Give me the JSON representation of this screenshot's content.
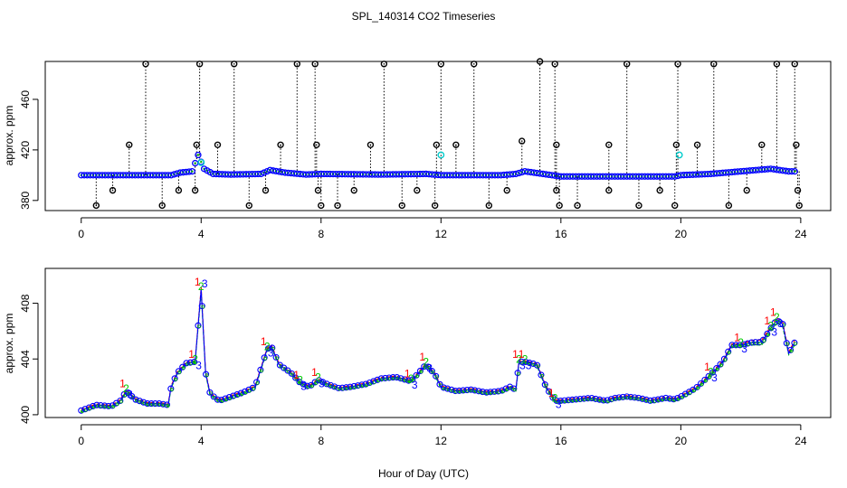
{
  "figure": {
    "title": "SPL_140314  CO2 Timeseries",
    "xlabel": "Hour of Day (UTC)"
  },
  "chart_data": [
    {
      "type": "scatter",
      "panel": "top",
      "ylabel": "approx. ppm",
      "xlim": [
        -1.2,
        25
      ],
      "ylim": [
        372,
        490
      ],
      "xticks": [
        0,
        4,
        8,
        12,
        16,
        20,
        24
      ],
      "yticks": [
        380,
        420,
        460
      ],
      "grid": false,
      "colors": {
        "raw": "#000000",
        "flag": "#00cccc",
        "smooth": "#0000ff",
        "inner": "#00aa00"
      },
      "baseline": [
        [
          0,
          400
        ],
        [
          1,
          400
        ],
        [
          2,
          400
        ],
        [
          3,
          400
        ],
        [
          3.3,
          402
        ],
        [
          3.7,
          403
        ],
        [
          3.9,
          416
        ],
        [
          4.1,
          405
        ],
        [
          4.4,
          401
        ],
        [
          5,
          400.5
        ],
        [
          6,
          401
        ],
        [
          6.3,
          404
        ],
        [
          6.8,
          402
        ],
        [
          7.5,
          400.5
        ],
        [
          8,
          401
        ],
        [
          10,
          400.5
        ],
        [
          11.5,
          401
        ],
        [
          12,
          400
        ],
        [
          14,
          400
        ],
        [
          14.5,
          401
        ],
        [
          14.8,
          403
        ],
        [
          15.7,
          400
        ],
        [
          16,
          399
        ],
        [
          19.8,
          399
        ],
        [
          20,
          400
        ],
        [
          21,
          401
        ],
        [
          22,
          403
        ],
        [
          23,
          405
        ],
        [
          23.6,
          403
        ]
      ],
      "high_spikes": [
        [
          2.15,
          488
        ],
        [
          3.95,
          488
        ],
        [
          5.1,
          488
        ],
        [
          7.2,
          488
        ],
        [
          7.8,
          488
        ],
        [
          10.1,
          488
        ],
        [
          12,
          488
        ],
        [
          13.1,
          488
        ],
        [
          15.3,
          490
        ],
        [
          15.8,
          488
        ],
        [
          18.2,
          488
        ],
        [
          19.9,
          488
        ],
        [
          21.1,
          488
        ],
        [
          23.2,
          488
        ],
        [
          23.8,
          488
        ],
        [
          1.6,
          424
        ],
        [
          3.85,
          424
        ],
        [
          4.55,
          424
        ],
        [
          6.65,
          424
        ],
        [
          7.85,
          424
        ],
        [
          9.65,
          424
        ],
        [
          11.85,
          424
        ],
        [
          12.5,
          424
        ],
        [
          14.7,
          427
        ],
        [
          15.85,
          424
        ],
        [
          17.6,
          424
        ],
        [
          19.85,
          424
        ],
        [
          20.55,
          424
        ],
        [
          22.7,
          424
        ],
        [
          23.85,
          424
        ]
      ],
      "low_spikes": [
        [
          0.5,
          376
        ],
        [
          2.7,
          376
        ],
        [
          5.6,
          376
        ],
        [
          8,
          376
        ],
        [
          8.55,
          376
        ],
        [
          10.7,
          376
        ],
        [
          11.8,
          376
        ],
        [
          13.6,
          376
        ],
        [
          15.95,
          376
        ],
        [
          16.55,
          376
        ],
        [
          18.6,
          376
        ],
        [
          19.8,
          376
        ],
        [
          21.6,
          376
        ],
        [
          23.95,
          376
        ],
        [
          1.05,
          388
        ],
        [
          3.25,
          388
        ],
        [
          3.8,
          388
        ],
        [
          6.15,
          388
        ],
        [
          7.9,
          388
        ],
        [
          9.1,
          388
        ],
        [
          11.2,
          388
        ],
        [
          14.2,
          388
        ],
        [
          15.85,
          388
        ],
        [
          17.6,
          388
        ],
        [
          19.3,
          388
        ],
        [
          22.2,
          388
        ],
        [
          23.9,
          388
        ]
      ],
      "flagged_points": [
        [
          4.0,
          410
        ],
        [
          12.0,
          416
        ],
        [
          19.95,
          416
        ]
      ]
    },
    {
      "type": "line",
      "panel": "bottom",
      "ylabel": "approx. ppm",
      "xlim": [
        -1.2,
        25
      ],
      "ylim": [
        399.8,
        410.5
      ],
      "xticks": [
        0,
        4,
        8,
        12,
        16,
        20,
        24
      ],
      "yticks": [
        400,
        404,
        408
      ],
      "grid": false,
      "markers": [
        "1",
        "2",
        "3"
      ],
      "series": [
        {
          "color": "#ff0000",
          "offset": 0.15
        },
        {
          "color": "#00cc00",
          "offset": -0.2
        },
        {
          "color": "#0000ff",
          "offset": 0.0
        }
      ],
      "x": [
        0,
        0.5,
        1.0,
        1.3,
        1.5,
        1.8,
        2.2,
        2.6,
        2.9,
        3.0,
        3.2,
        3.5,
        3.8,
        4.0,
        4.15,
        4.3,
        4.6,
        5.0,
        5.4,
        5.8,
        6.2,
        6.35,
        6.6,
        7.0,
        7.3,
        7.6,
        7.9,
        8.2,
        8.6,
        9.0,
        9.5,
        10.0,
        10.5,
        11.0,
        11.5,
        11.8,
        12.0,
        12.5,
        13.0,
        13.5,
        14.0,
        14.3,
        14.5,
        14.6,
        14.8,
        15.2,
        15.5,
        15.8,
        16.0,
        16.5,
        17.0,
        17.5,
        17.8,
        18.2,
        18.6,
        19.0,
        19.5,
        19.8,
        20.0,
        20.5,
        21.0,
        21.4,
        21.7,
        22.0,
        22.4,
        22.7,
        23.0,
        23.2,
        23.4,
        23.6,
        23.8
      ],
      "y": [
        400.3,
        400.7,
        400.6,
        401.0,
        401.7,
        401.1,
        400.8,
        400.8,
        400.7,
        402.0,
        403.0,
        403.7,
        403.8,
        409.0,
        403.0,
        401.5,
        401.0,
        401.3,
        401.6,
        402.0,
        404.7,
        404.9,
        403.6,
        403.0,
        402.3,
        402.0,
        402.5,
        402.2,
        401.9,
        402.0,
        402.2,
        402.6,
        402.7,
        402.4,
        403.6,
        402.9,
        402.0,
        401.7,
        401.8,
        401.6,
        401.7,
        402.0,
        401.8,
        403.8,
        403.8,
        403.6,
        402.0,
        401.0,
        401.0,
        401.1,
        401.2,
        401.0,
        401.2,
        401.3,
        401.2,
        401.0,
        401.2,
        401.1,
        401.3,
        401.9,
        402.9,
        403.8,
        405.0,
        405.0,
        405.2,
        405.2,
        406.2,
        406.8,
        406.5,
        404.4,
        405.2
      ]
    }
  ]
}
